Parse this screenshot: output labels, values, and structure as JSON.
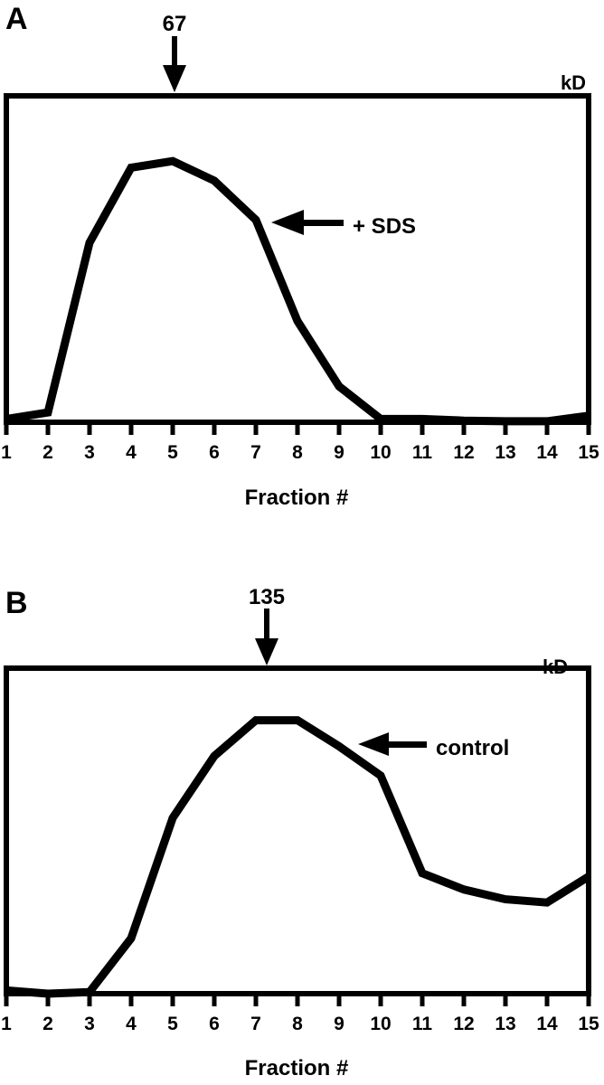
{
  "chart_data": [
    {
      "type": "line",
      "panel_label": "A",
      "title": "",
      "xlabel": "Fraction #",
      "ylabel": "",
      "x": [
        1,
        2,
        3,
        4,
        5,
        6,
        7,
        8,
        9,
        10,
        11,
        12,
        13,
        14,
        15
      ],
      "series": [
        {
          "name": "+ SDS",
          "values": [
            1,
            3,
            55,
            78,
            80,
            74,
            62,
            31,
            11,
            1,
            1,
            0.5,
            0.3,
            0.3,
            2
          ]
        }
      ],
      "xlim": [
        1,
        15
      ],
      "ylim": [
        0,
        100
      ],
      "grid": false,
      "marker": {
        "label": "67",
        "unit": "kD",
        "x": 5
      },
      "annotation": {
        "text": "+ SDS",
        "arrow_to_x": 7
      }
    },
    {
      "type": "line",
      "panel_label": "B",
      "title": "",
      "xlabel": "Fraction #",
      "ylabel": "",
      "x": [
        1,
        2,
        3,
        4,
        5,
        6,
        7,
        8,
        9,
        10,
        11,
        12,
        13,
        14,
        15
      ],
      "series": [
        {
          "name": "control",
          "values": [
            1,
            0,
            0.5,
            17,
            54,
            73,
            84,
            84,
            76,
            67,
            37,
            32,
            29,
            28,
            36
          ]
        }
      ],
      "xlim": [
        1,
        15
      ],
      "ylim": [
        0,
        100
      ],
      "grid": false,
      "marker": {
        "label": "135",
        "unit": "kD",
        "x": 7.3
      },
      "annotation": {
        "text": "control",
        "arrow_to_x": 9.2
      }
    }
  ],
  "panels": {
    "A": {
      "label": "A",
      "marker_label": "67",
      "unit": "kD",
      "series_label": "+ SDS",
      "xlabel": "Fraction #"
    },
    "B": {
      "label": "B",
      "marker_label": "135",
      "unit": "kD",
      "series_label": "control",
      "xlabel": "Fraction #"
    }
  },
  "x_ticks": [
    "1",
    "2",
    "3",
    "4",
    "5",
    "6",
    "7",
    "8",
    "9",
    "10",
    "11",
    "12",
    "13",
    "14",
    "15"
  ],
  "colors": {
    "line": "#000000",
    "background": "#ffffff"
  }
}
